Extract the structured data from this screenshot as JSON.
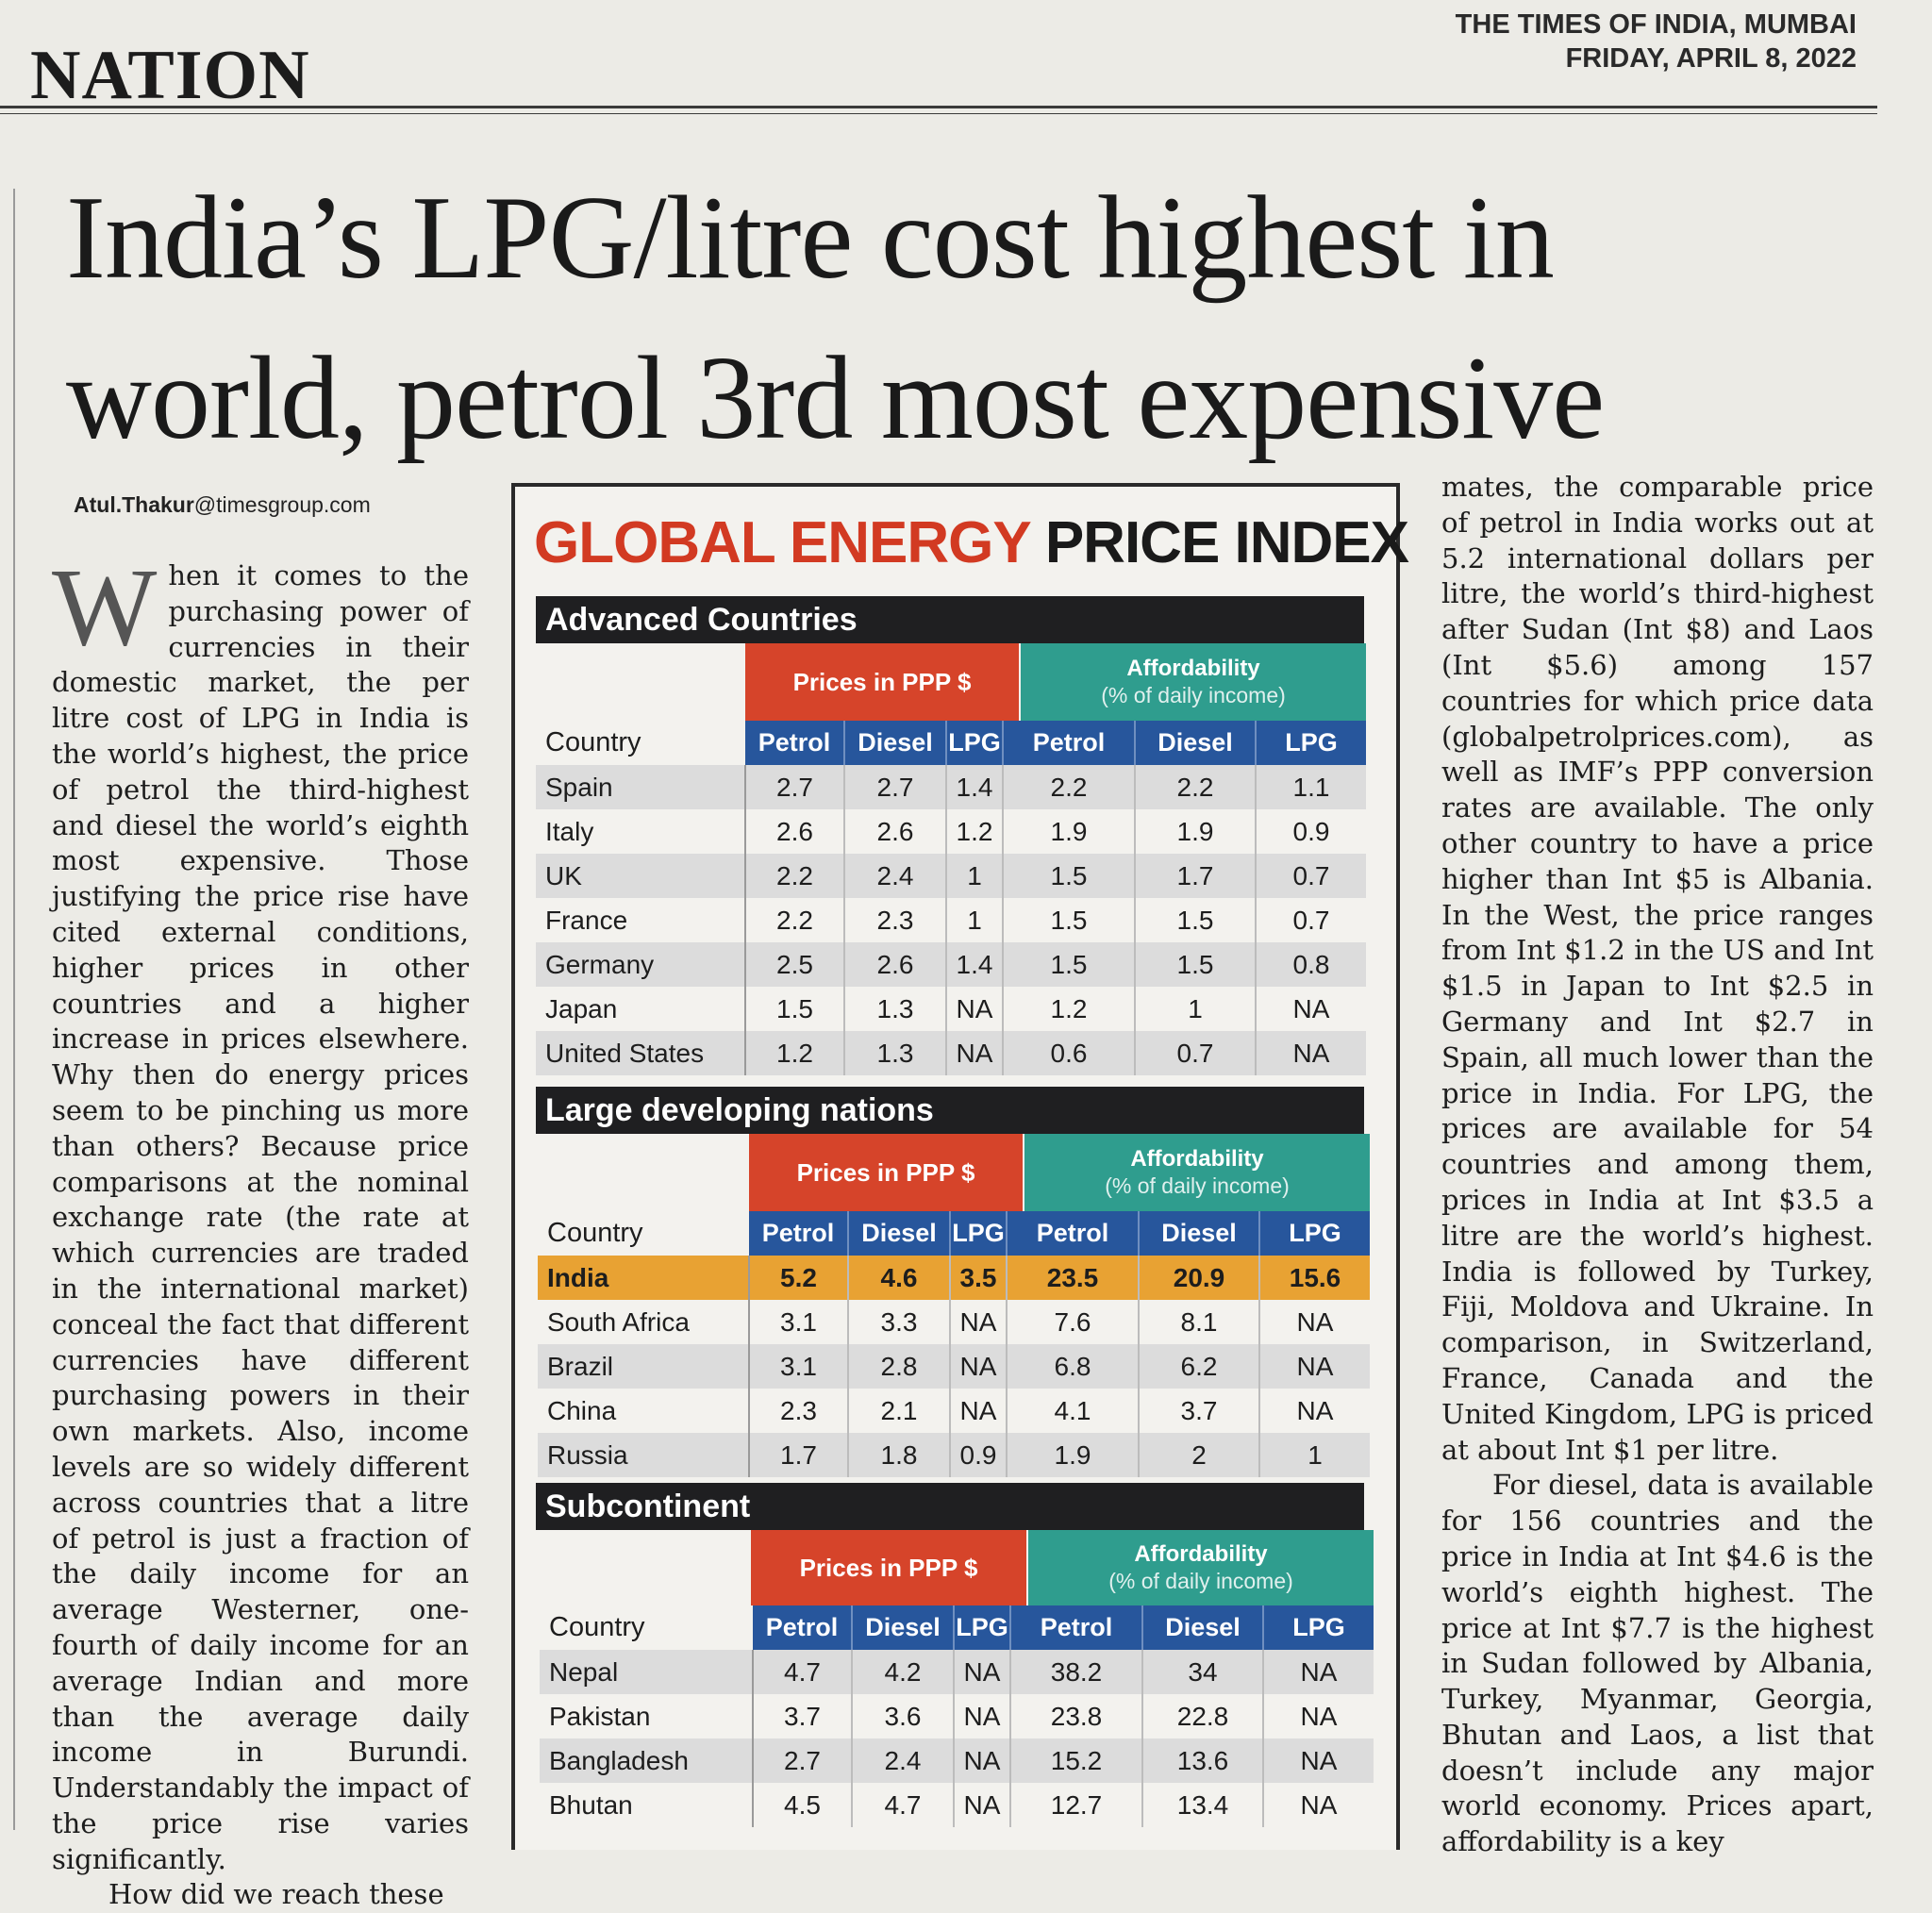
{
  "masthead": {
    "paper": "THE TIMES OF INDIA, MUMBAI",
    "date": "FRIDAY, APRIL 8, 2022"
  },
  "section": "NATION",
  "headline": {
    "line1": "India’s LPG/litre cost highest in",
    "line2": "world, petrol 3rd most expensive"
  },
  "byline": {
    "name": "Atul.Thakur",
    "domain": "@timesgroup.com"
  },
  "article": {
    "dropcap": "W",
    "left_column": "hen it comes to the purchasing power of currencies in their domestic market, the per litre cost of LPG in India is the world’s highest, the price of petrol the third-highest and diesel the world’s eighth most expensive. Those justifying the price rise have cited external conditions, higher prices in other countries and a higher increase in prices elsewhere. Why then do energy prices seem to be pinching us more than others? Because price comparisons at the nominal exchange rate (the rate at which currencies are traded in the international market) conceal the fact that different currencies have different purchasing powers in their own markets. Also, income levels are so widely different across countries that a litre of petrol is just a fraction of the daily income for an average Westerner, one-fourth of daily income for an average Indian and more than the average daily income in Burundi. Understandably the impact of the price rise varies significantly.",
    "left_column_p2": "How did we reach these",
    "right_column_p1": "mates, the comparable price of petrol in India works out at 5.2 international dollars per litre, the world’s third-highest after Sudan (Int $8) and Laos (Int $5.6) among 157 countries for which price data (globalpetrolprices.com), as well as IMF’s PPP conversion rates are available. The only other country to have a price higher than Int $5 is Albania. In the West, the price ranges from Int $1.2 in the US and Int $1.5 in Japan to Int $2.5 in Germany and Int $2.7 in Spain, all much lower than the price in India. For LPG, the prices are available for 54 countries and among them, prices in India at Int $3.5 a litre are the world’s highest. India is followed by Turkey, Fiji, Moldova and Ukraine. In comparison, in Switzerland, France, Canada and the United Kingdom, LPG is priced at about Int $1 per litre.",
    "right_column_p2": "For diesel, data is available for 156 countries and the price in India at Int $4.6 is the world’s eighth highest. The price at Int $7.7 is the highest in Sudan followed by Albania, Turkey, Myanmar, Georgia, Bhutan and Laos, a list that doesn’t include any major world economy. Prices apart, affordability is a key"
  },
  "infographic": {
    "title_part1": "GLOBAL ENERGY",
    "title_part2": "PRICE INDEX",
    "group_header_prices": "Prices in PPP $",
    "group_header_afford": "Affordability",
    "group_header_afford_sub": "(% of daily income)",
    "col_country": "Country",
    "col_labels": [
      "Petrol",
      "Diesel",
      "LPG",
      "Petrol",
      "Diesel",
      "LPG"
    ],
    "sections": [
      {
        "title": "Advanced Countries",
        "rows": [
          [
            "Spain",
            "2.7",
            "2.7",
            "1.4",
            "2.2",
            "2.2",
            "1.1"
          ],
          [
            "Italy",
            "2.6",
            "2.6",
            "1.2",
            "1.9",
            "1.9",
            "0.9"
          ],
          [
            "UK",
            "2.2",
            "2.4",
            "1",
            "1.5",
            "1.7",
            "0.7"
          ],
          [
            "France",
            "2.2",
            "2.3",
            "1",
            "1.5",
            "1.5",
            "0.7"
          ],
          [
            "Germany",
            "2.5",
            "2.6",
            "1.4",
            "1.5",
            "1.5",
            "0.8"
          ],
          [
            "Japan",
            "1.5",
            "1.3",
            "NA",
            "1.2",
            "1",
            "NA"
          ],
          [
            "United States",
            "1.2",
            "1.3",
            "NA",
            "0.6",
            "0.7",
            "NA"
          ]
        ]
      },
      {
        "title": "Large developing nations",
        "rows": [
          [
            "India",
            "5.2",
            "4.6",
            "3.5",
            "23.5",
            "20.9",
            "15.6"
          ],
          [
            "South Africa",
            "3.1",
            "3.3",
            "NA",
            "7.6",
            "8.1",
            "NA"
          ],
          [
            "Brazil",
            "3.1",
            "2.8",
            "NA",
            "6.8",
            "6.2",
            "NA"
          ],
          [
            "China",
            "2.3",
            "2.1",
            "NA",
            "4.1",
            "3.7",
            "NA"
          ],
          [
            "Russia",
            "1.7",
            "1.8",
            "0.9",
            "1.9",
            "2",
            "1"
          ]
        ]
      },
      {
        "title": "Subcontinent",
        "rows": [
          [
            "Nepal",
            "4.7",
            "4.2",
            "NA",
            "38.2",
            "34",
            "NA"
          ],
          [
            "Pakistan",
            "3.7",
            "3.6",
            "NA",
            "23.8",
            "22.8",
            "NA"
          ],
          [
            "Bangladesh",
            "2.7",
            "2.4",
            "NA",
            "15.2",
            "13.6",
            "NA"
          ],
          [
            "Bhutan",
            "4.5",
            "4.7",
            "NA",
            "12.7",
            "13.4",
            "NA"
          ]
        ]
      }
    ]
  },
  "colors": {
    "red": "#d6442a",
    "teal": "#2f9d8e",
    "blue": "#27569c",
    "highlight": "#e8a233",
    "band": "#1f1f21"
  }
}
